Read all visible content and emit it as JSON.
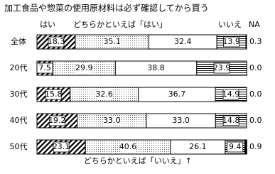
{
  "chart_data": {
    "type": "stacked-bar",
    "title": "加工食品や惣菜の使用原材料は必ず確認してから買う",
    "categories": [
      "全体",
      "20代",
      "30代",
      "40代",
      "50代"
    ],
    "xlim": [
      0,
      100
    ],
    "series": [
      {
        "name": "はい",
        "pattern": "hatch",
        "values": [
          18.3,
          7.5,
          15.8,
          19.2,
          23.1
        ]
      },
      {
        "name": "どちらかといえば「はい」",
        "pattern": "dots",
        "values": [
          35.1,
          29.9,
          32.6,
          33.0,
          40.6
        ],
        "value_labels": [
          "35.1",
          "29.9",
          "32.6",
          "33.0",
          "40.6"
        ]
      },
      {
        "name": "どちらかといえば「いいえ」↑",
        "pattern": "white",
        "values": [
          32.4,
          38.8,
          36.7,
          33.0,
          26.1
        ],
        "value_labels": [
          "32.4",
          "38.8",
          "36.7",
          "33.0",
          "26.1"
        ]
      },
      {
        "name": "いいえ",
        "pattern": "lines",
        "values": [
          13.9,
          23.9,
          14.9,
          14.8,
          9.4
        ]
      },
      {
        "name": "NA",
        "pattern": "black",
        "values": [
          0.3,
          0.0,
          0.0,
          0.0,
          0.9
        ],
        "value_labels": [
          "0.3",
          "0.0",
          "0.0",
          "0.0",
          "0.9"
        ]
      }
    ]
  }
}
